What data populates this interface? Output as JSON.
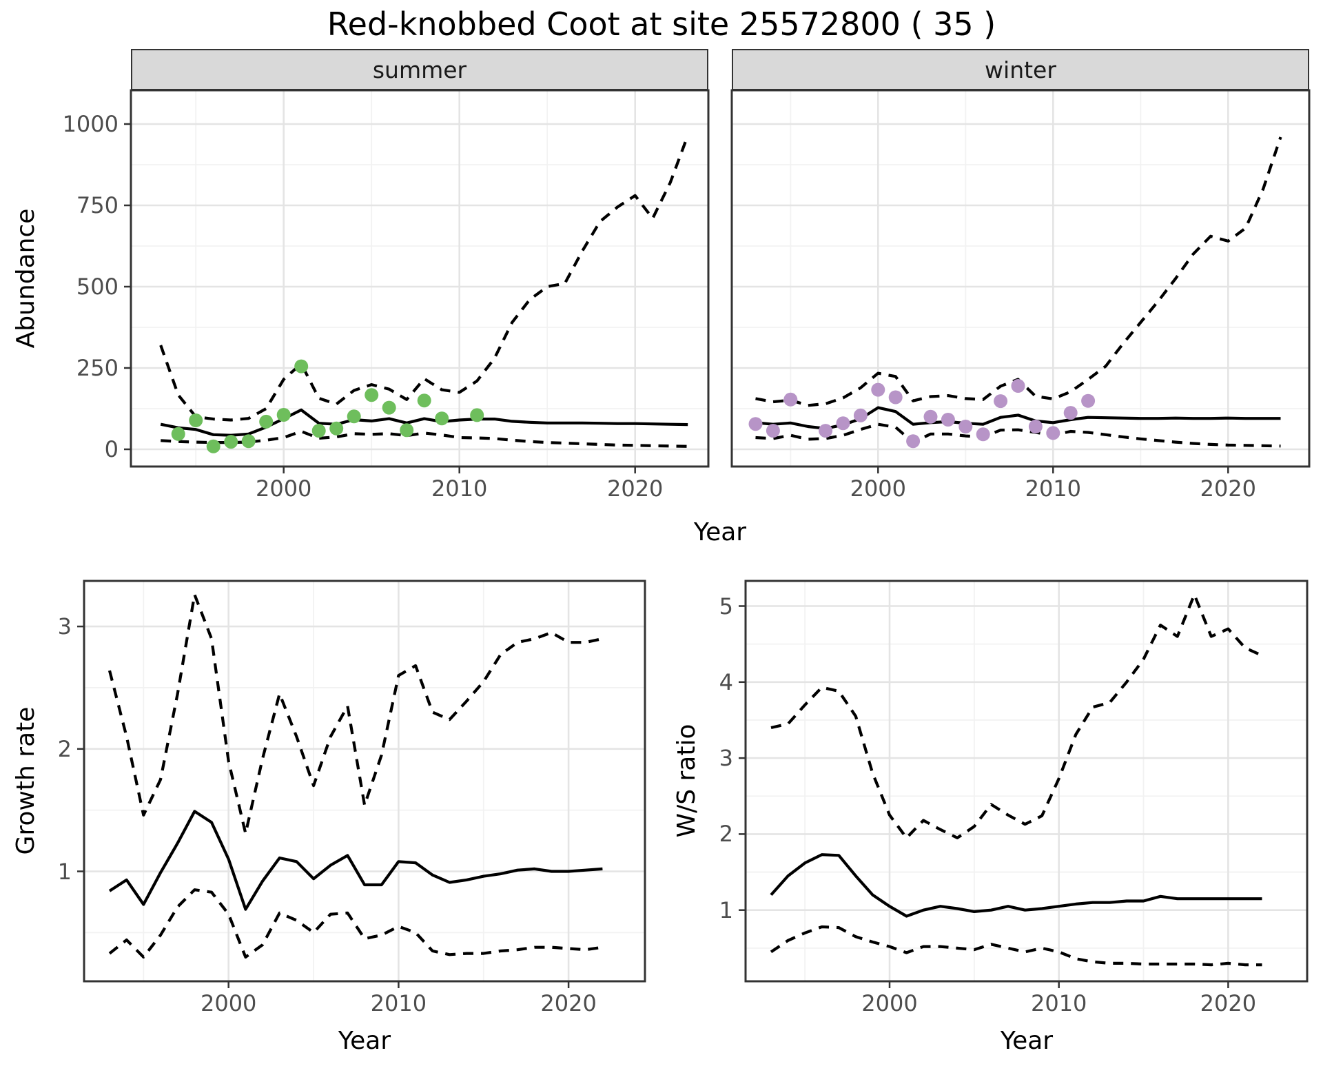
{
  "title": "Red-knobbed Coot at site 25572800 ( 35 )",
  "colors": {
    "summer_points": "#6EBE5C",
    "winter_points": "#B794C7",
    "line": "#000000",
    "strip_bg": "#D9D9D9",
    "tick_text": "#4D4D4D",
    "grid_major": "#E4E4E4",
    "grid_minor": "#F2F2F2",
    "panel_border": "#333333"
  },
  "chart_data": [
    {
      "id": "abundance-summer",
      "type": "line",
      "facet": "summer",
      "xlabel": "Year",
      "ylabel": "Abundance",
      "xlim": [
        1991.5,
        2024.5
      ],
      "ylim": [
        0,
        1000
      ],
      "x_ticks": [
        2000,
        2010,
        2020
      ],
      "x_minor": [
        1995,
        2005,
        2015
      ],
      "y_ticks": [
        0,
        250,
        500,
        750,
        1000
      ],
      "y_minor": [
        125,
        375,
        625,
        875
      ],
      "years": [
        1993,
        1994,
        1995,
        1996,
        1997,
        1998,
        1999,
        2000,
        2001,
        2002,
        2003,
        2004,
        2005,
        2006,
        2007,
        2008,
        2009,
        2010,
        2011,
        2012,
        2013,
        2014,
        2015,
        2016,
        2017,
        2018,
        2019,
        2020,
        2021,
        2022,
        2023
      ],
      "series": [
        {
          "name": "fit",
          "style": "solid",
          "values": [
            77,
            66,
            61,
            45,
            43,
            47,
            68,
            94,
            121,
            80,
            77,
            91,
            87,
            94,
            81,
            94,
            85,
            90,
            93,
            93,
            86,
            83,
            81,
            81,
            81,
            80,
            79,
            79,
            78,
            77,
            76
          ]
        },
        {
          "name": "upper_ci",
          "style": "dashed",
          "values": [
            320,
            167,
            100,
            93,
            90,
            95,
            125,
            215,
            263,
            157,
            139,
            181,
            199,
            185,
            153,
            217,
            183,
            175,
            210,
            280,
            390,
            460,
            500,
            510,
            610,
            700,
            745,
            780,
            710,
            820,
            965
          ]
        },
        {
          "name": "lower_ci",
          "style": "dashed",
          "values": [
            27,
            24,
            22,
            21,
            21,
            22,
            28,
            36,
            55,
            34,
            38,
            48,
            46,
            48,
            42,
            50,
            44,
            36,
            35,
            33,
            28,
            24,
            21,
            19,
            17,
            15,
            13,
            12,
            11,
            10,
            9
          ]
        }
      ],
      "points": {
        "name": "observed",
        "color": "#6EBE5C",
        "years": [
          1994,
          1995,
          1996,
          1997,
          1998,
          1999,
          2000,
          2001,
          2002,
          2003,
          2004,
          2005,
          2006,
          2007,
          2008,
          2009,
          2011
        ],
        "values": [
          47,
          89,
          9,
          23,
          25,
          85,
          106,
          255,
          57,
          64,
          101,
          167,
          128,
          59,
          150,
          95,
          105
        ]
      }
    },
    {
      "id": "abundance-winter",
      "type": "line",
      "facet": "winter",
      "xlabel": "Year",
      "ylabel": "Abundance",
      "xlim": [
        1991.5,
        2024.5
      ],
      "ylim": [
        0,
        1000
      ],
      "x_ticks": [
        2000,
        2010,
        2020
      ],
      "x_minor": [
        1995,
        2005,
        2015
      ],
      "y_ticks": [
        0,
        250,
        500,
        750,
        1000
      ],
      "y_minor": [
        125,
        375,
        625,
        875
      ],
      "years": [
        1993,
        1994,
        1995,
        1996,
        1997,
        1998,
        1999,
        2000,
        2001,
        2002,
        2003,
        2004,
        2005,
        2006,
        2007,
        2008,
        2009,
        2010,
        2011,
        2012,
        2013,
        2014,
        2015,
        2016,
        2017,
        2018,
        2019,
        2020,
        2021,
        2022,
        2023
      ],
      "series": [
        {
          "name": "fit",
          "style": "solid",
          "values": [
            82,
            77,
            81,
            70,
            64,
            75,
            94,
            128,
            116,
            77,
            82,
            85,
            80,
            77,
            98,
            105,
            87,
            82,
            91,
            98,
            97,
            96,
            95,
            95,
            96,
            95,
            95,
            96,
            95,
            95,
            95
          ]
        },
        {
          "name": "upper_ci",
          "style": "dashed",
          "values": [
            156,
            146,
            151,
            135,
            140,
            158,
            189,
            234,
            224,
            149,
            162,
            165,
            156,
            153,
            194,
            215,
            163,
            155,
            177,
            215,
            255,
            325,
            390,
            455,
            525,
            600,
            655,
            640,
            680,
            800,
            960
          ]
        },
        {
          "name": "lower_ci",
          "style": "dashed",
          "values": [
            36,
            33,
            43,
            31,
            33,
            43,
            61,
            77,
            68,
            21,
            47,
            47,
            41,
            38,
            59,
            60,
            52,
            43,
            55,
            52,
            45,
            38,
            32,
            27,
            22,
            18,
            15,
            13,
            12,
            11,
            10
          ]
        }
      ],
      "points": {
        "name": "observed",
        "color": "#B794C7",
        "years": [
          1993,
          1994,
          1995,
          1997,
          1998,
          1999,
          2000,
          2001,
          2002,
          2003,
          2004,
          2005,
          2006,
          2007,
          2008,
          2009,
          2010,
          2011,
          2012
        ],
        "values": [
          78,
          57,
          153,
          57,
          80,
          104,
          183,
          160,
          25,
          100,
          91,
          70,
          46,
          148,
          195,
          70,
          50,
          112,
          149
        ]
      }
    },
    {
      "id": "growth-rate",
      "type": "line",
      "facet": null,
      "xlabel": "Year",
      "ylabel": "Growth rate",
      "xlim": [
        1991.5,
        2024.5
      ],
      "ylim": [
        0.2,
        3.3
      ],
      "x_ticks": [
        2000,
        2010,
        2020
      ],
      "x_minor": [
        1995,
        2005,
        2015
      ],
      "y_ticks": [
        1,
        2,
        3
      ],
      "y_minor": [
        0.5,
        1.5,
        2.5
      ],
      "years": [
        1993,
        1994,
        1995,
        1996,
        1997,
        1998,
        1999,
        2000,
        2001,
        2002,
        2003,
        2004,
        2005,
        2006,
        2007,
        2008,
        2009,
        2010,
        2011,
        2012,
        2013,
        2014,
        2015,
        2016,
        2017,
        2018,
        2019,
        2020,
        2021,
        2022
      ],
      "series": [
        {
          "name": "fit",
          "style": "solid",
          "values": [
            0.84,
            0.93,
            0.73,
            0.99,
            1.23,
            1.49,
            1.4,
            1.1,
            0.69,
            0.92,
            1.11,
            1.08,
            0.94,
            1.05,
            1.13,
            0.89,
            0.89,
            1.08,
            1.07,
            0.97,
            0.91,
            0.93,
            0.96,
            0.98,
            1.01,
            1.02,
            1.0,
            1.0,
            1.01,
            1.02
          ]
        },
        {
          "name": "upper_ci",
          "style": "dashed",
          "values": [
            2.64,
            2.1,
            1.46,
            1.75,
            2.45,
            3.26,
            2.9,
            1.9,
            1.31,
            1.92,
            2.45,
            2.1,
            1.7,
            2.1,
            2.35,
            1.54,
            1.95,
            2.6,
            2.68,
            2.3,
            2.24,
            2.39,
            2.55,
            2.77,
            2.87,
            2.9,
            2.95,
            2.87,
            2.87,
            2.9
          ]
        },
        {
          "name": "lower_ci",
          "style": "dashed",
          "values": [
            0.33,
            0.44,
            0.3,
            0.48,
            0.71,
            0.85,
            0.83,
            0.65,
            0.3,
            0.4,
            0.66,
            0.6,
            0.5,
            0.65,
            0.66,
            0.45,
            0.48,
            0.55,
            0.5,
            0.35,
            0.32,
            0.33,
            0.33,
            0.35,
            0.36,
            0.38,
            0.38,
            0.37,
            0.36,
            0.38
          ]
        }
      ],
      "points": null
    },
    {
      "id": "ws-ratio",
      "type": "line",
      "facet": null,
      "xlabel": "Year",
      "ylabel": "W/S ratio",
      "xlim": [
        1991.5,
        2024.5
      ],
      "ylim": [
        0.2,
        5.3
      ],
      "x_ticks": [
        2000,
        2010,
        2020
      ],
      "x_minor": [
        1995,
        2005,
        2015
      ],
      "y_ticks": [
        1,
        2,
        3,
        4,
        5
      ],
      "y_minor": [
        0.5,
        1.5,
        2.5,
        3.5,
        4.5
      ],
      "years": [
        1993,
        1994,
        1995,
        1996,
        1997,
        1998,
        1999,
        2000,
        2001,
        2002,
        2003,
        2004,
        2005,
        2006,
        2007,
        2008,
        2009,
        2010,
        2011,
        2012,
        2013,
        2014,
        2015,
        2016,
        2017,
        2018,
        2019,
        2020,
        2021,
        2022
      ],
      "series": [
        {
          "name": "fit",
          "style": "solid",
          "values": [
            1.2,
            1.45,
            1.62,
            1.73,
            1.72,
            1.45,
            1.2,
            1.05,
            0.92,
            1.0,
            1.05,
            1.02,
            0.98,
            1.0,
            1.05,
            1.0,
            1.02,
            1.05,
            1.08,
            1.1,
            1.1,
            1.12,
            1.12,
            1.18,
            1.15,
            1.15,
            1.15,
            1.15,
            1.15,
            1.15
          ]
        },
        {
          "name": "upper_ci",
          "style": "dashed",
          "values": [
            3.4,
            3.45,
            3.7,
            3.93,
            3.88,
            3.55,
            2.8,
            2.25,
            1.95,
            2.18,
            2.06,
            1.95,
            2.1,
            2.39,
            2.25,
            2.13,
            2.24,
            2.73,
            3.31,
            3.67,
            3.73,
            4.0,
            4.3,
            4.75,
            4.6,
            5.15,
            4.6,
            4.7,
            4.45,
            4.35
          ]
        },
        {
          "name": "lower_ci",
          "style": "dashed",
          "values": [
            0.45,
            0.6,
            0.7,
            0.78,
            0.77,
            0.65,
            0.58,
            0.52,
            0.44,
            0.52,
            0.52,
            0.5,
            0.48,
            0.55,
            0.5,
            0.45,
            0.5,
            0.45,
            0.36,
            0.32,
            0.3,
            0.3,
            0.29,
            0.29,
            0.29,
            0.29,
            0.28,
            0.3,
            0.28,
            0.28
          ]
        }
      ],
      "points": null
    }
  ]
}
